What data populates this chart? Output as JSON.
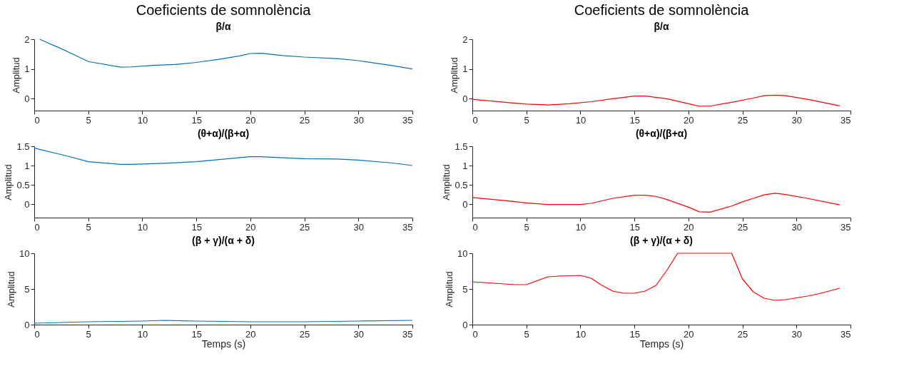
{
  "chart_data": [
    {
      "type": "line",
      "title": "Coeficients de somnolència",
      "subtitle": "β/α",
      "ylabel": "Amplitud",
      "x": [
        0.5,
        3,
        5,
        8,
        9,
        11,
        13,
        15,
        17,
        19,
        20,
        21,
        23,
        25,
        28,
        30,
        33,
        35
      ],
      "series": [
        {
          "color": "#0072bd",
          "values": [
            2.0,
            1.6,
            1.25,
            1.06,
            1.07,
            1.12,
            1.15,
            1.22,
            1.32,
            1.44,
            1.52,
            1.53,
            1.45,
            1.4,
            1.35,
            1.28,
            1.12,
            1.0
          ]
        }
      ],
      "xlim": [
        0,
        35
      ],
      "xticks": [
        0,
        5,
        10,
        15,
        20,
        25,
        30,
        35
      ],
      "ylim": [
        -0.4,
        2
      ],
      "yticks": [
        0,
        1,
        2
      ],
      "grid": false
    },
    {
      "type": "line",
      "subtitle": "(θ+α)/(β+α)",
      "ylabel": "Amplitud",
      "x": [
        0,
        3,
        5,
        8,
        9,
        12,
        15,
        18,
        20,
        21,
        23,
        25,
        28,
        30,
        33,
        35
      ],
      "series": [
        {
          "color": "#0072bd",
          "values": [
            1.45,
            1.25,
            1.1,
            1.03,
            1.03,
            1.06,
            1.1,
            1.18,
            1.23,
            1.23,
            1.2,
            1.18,
            1.17,
            1.14,
            1.07,
            1.0
          ]
        }
      ],
      "xlim": [
        0,
        35
      ],
      "xticks": [
        0,
        5,
        10,
        15,
        20,
        25,
        30,
        35
      ],
      "ylim": [
        -0.35,
        1.5
      ],
      "yticks": [
        0,
        0.5,
        1,
        1.5
      ],
      "grid": false
    },
    {
      "type": "line",
      "subtitle": "(β + γ)/(α + δ)",
      "xlabel": "Temps (s)",
      "ylabel": "Amplitud",
      "x": [
        0,
        5,
        10,
        12,
        15,
        20,
        25,
        30,
        35
      ],
      "series": [
        {
          "color": "#0072bd",
          "values": [
            0.2,
            0.4,
            0.5,
            0.6,
            0.5,
            0.4,
            0.4,
            0.5,
            0.6
          ]
        }
      ],
      "xlim": [
        0,
        35
      ],
      "xticks": [
        0,
        5,
        10,
        15,
        20,
        25,
        30,
        35
      ],
      "ylim": [
        0,
        10
      ],
      "yticks": [
        0,
        5,
        10
      ],
      "grid": false
    },
    {
      "type": "line",
      "title": "Coeficients de somnolència",
      "subtitle": "β/α",
      "ylabel": "Amplitud",
      "x": [
        0,
        3,
        5,
        7,
        9,
        11,
        13,
        15,
        16,
        18,
        20,
        21,
        22,
        24,
        26,
        27,
        28,
        29,
        31,
        34
      ],
      "series": [
        {
          "color": "#ff0000",
          "values": [
            -0.02,
            -0.12,
            -0.18,
            -0.21,
            -0.17,
            -0.1,
            0.0,
            0.09,
            0.09,
            0.0,
            -0.17,
            -0.25,
            -0.25,
            -0.12,
            0.02,
            0.1,
            0.12,
            0.1,
            -0.02,
            -0.24
          ]
        }
      ],
      "xlim": [
        0,
        35
      ],
      "xticks": [
        0,
        5,
        10,
        15,
        20,
        25,
        30,
        35
      ],
      "ylim": [
        -0.4,
        2
      ],
      "yticks": [
        0,
        1,
        2
      ],
      "grid": false
    },
    {
      "type": "line",
      "subtitle": "(θ+α)/(β+α)",
      "ylabel": "Amplitud",
      "x": [
        0,
        3,
        5,
        7,
        10,
        11,
        13,
        15,
        16,
        17,
        18,
        20,
        21,
        22,
        24,
        25,
        26,
        27,
        28,
        29,
        31,
        34
      ],
      "series": [
        {
          "color": "#ff0000",
          "values": [
            0.17,
            0.09,
            0.03,
            -0.01,
            -0.01,
            0.02,
            0.15,
            0.23,
            0.23,
            0.2,
            0.12,
            -0.08,
            -0.2,
            -0.21,
            -0.05,
            0.06,
            0.15,
            0.24,
            0.28,
            0.25,
            0.15,
            -0.02
          ]
        }
      ],
      "xlim": [
        0,
        35
      ],
      "xticks": [
        0,
        5,
        10,
        15,
        20,
        25,
        30,
        35
      ],
      "ylim": [
        -0.35,
        1.5
      ],
      "yticks": [
        0,
        0.5,
        1,
        1.5
      ],
      "grid": false
    },
    {
      "type": "line",
      "subtitle": "(β + γ)/(α + δ)",
      "xlabel": "Temps (s)",
      "ylabel": "Amplitud",
      "x": [
        0,
        2,
        4,
        5,
        7,
        8,
        10,
        11,
        12,
        13,
        14,
        15,
        16,
        17,
        18,
        19,
        24,
        25,
        26,
        27,
        28,
        29,
        31,
        32,
        34
      ],
      "series": [
        {
          "color": "#ff0000",
          "values": [
            6.0,
            5.8,
            5.6,
            5.6,
            6.7,
            6.8,
            6.9,
            6.5,
            5.5,
            4.7,
            4.4,
            4.4,
            4.7,
            5.5,
            7.6,
            10,
            10,
            6.4,
            4.6,
            3.7,
            3.4,
            3.5,
            4.0,
            4.3,
            5.1
          ]
        }
      ],
      "xlim": [
        0,
        35
      ],
      "xticks": [
        0,
        5,
        10,
        15,
        20,
        25,
        30,
        35
      ],
      "ylim": [
        0,
        10
      ],
      "yticks": [
        0,
        5,
        10
      ],
      "grid": false
    }
  ]
}
